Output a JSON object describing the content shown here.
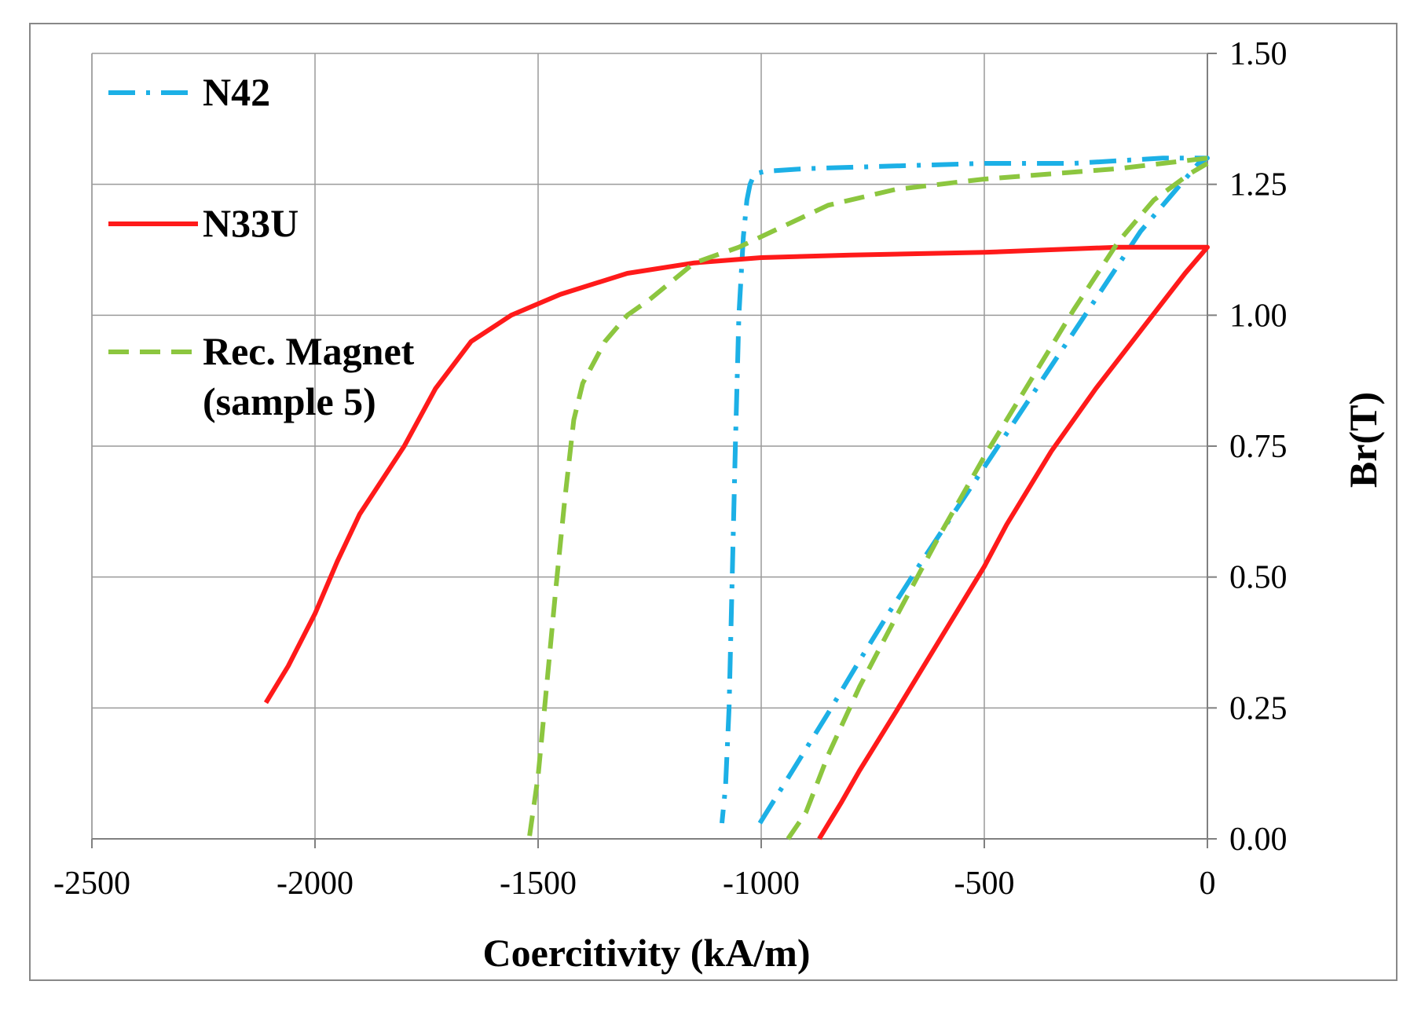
{
  "chart_data": {
    "type": "line",
    "title": "",
    "xlabel": "Coercitivity (kA/m)",
    "ylabel": "Br(T)",
    "xlim": [
      -2500,
      0
    ],
    "ylim": [
      0,
      1.5
    ],
    "x_ticks": [
      -2500,
      -2000,
      -1500,
      -1000,
      -500,
      0
    ],
    "x_tick_labels": [
      "-2500",
      "-2000",
      "-1500",
      "-1000",
      "-500",
      "0"
    ],
    "y_ticks": [
      0,
      0.25,
      0.5,
      0.75,
      1.0,
      1.25,
      1.5
    ],
    "y_tick_labels": [
      "0.00",
      "0.25",
      "0.50",
      "0.75",
      "1.00",
      "1.25",
      "1.50"
    ],
    "y_axis_side": "right",
    "grid": true,
    "legend_position": "top-left",
    "series": [
      {
        "name": "N42",
        "legend_label": [
          "N42"
        ],
        "color": "#1cb0e6",
        "style": "dash-dot",
        "points": [
          [
            -1003,
            0.03
          ],
          [
            -930,
            0.13
          ],
          [
            -850,
            0.24
          ],
          [
            -780,
            0.34
          ],
          [
            -715,
            0.43
          ],
          [
            -640,
            0.53
          ],
          [
            -570,
            0.62
          ],
          [
            -500,
            0.71
          ],
          [
            -430,
            0.8
          ],
          [
            -360,
            0.89
          ],
          [
            -290,
            0.98
          ],
          [
            -220,
            1.07
          ],
          [
            -150,
            1.16
          ],
          [
            -80,
            1.23
          ],
          [
            -20,
            1.29
          ],
          [
            0,
            1.3
          ],
          [
            -100,
            1.3
          ],
          [
            -300,
            1.29
          ],
          [
            -500,
            1.29
          ],
          [
            -700,
            1.285
          ],
          [
            -900,
            1.28
          ],
          [
            -990,
            1.275
          ],
          [
            -1015,
            1.27
          ],
          [
            -1025,
            1.25
          ],
          [
            -1032,
            1.22
          ],
          [
            -1040,
            1.15
          ],
          [
            -1050,
            1.0
          ],
          [
            -1058,
            0.75
          ],
          [
            -1065,
            0.5
          ],
          [
            -1072,
            0.25
          ],
          [
            -1080,
            0.1
          ],
          [
            -1088,
            0.03
          ]
        ]
      },
      {
        "name": "N33U",
        "legend_label": [
          "N33U"
        ],
        "color": "#ff1a1a",
        "style": "solid",
        "points": [
          [
            -2110,
            0.26
          ],
          [
            -2060,
            0.33
          ],
          [
            -2000,
            0.43
          ],
          [
            -1950,
            0.53
          ],
          [
            -1900,
            0.62
          ],
          [
            -1800,
            0.75
          ],
          [
            -1730,
            0.86
          ],
          [
            -1650,
            0.95
          ],
          [
            -1560,
            1.0
          ],
          [
            -1450,
            1.04
          ],
          [
            -1300,
            1.08
          ],
          [
            -1150,
            1.1
          ],
          [
            -1000,
            1.11
          ],
          [
            -800,
            1.115
          ],
          [
            -500,
            1.12
          ],
          [
            -200,
            1.13
          ],
          [
            0,
            1.13
          ],
          [
            -50,
            1.08
          ],
          [
            -150,
            0.97
          ],
          [
            -250,
            0.86
          ],
          [
            -350,
            0.74
          ],
          [
            -450,
            0.6
          ],
          [
            -500,
            0.52
          ],
          [
            -600,
            0.38
          ],
          [
            -700,
            0.24
          ],
          [
            -780,
            0.13
          ],
          [
            -820,
            0.07
          ],
          [
            -870,
            0.0
          ]
        ]
      },
      {
        "name": "Rec. Magnet (sample 5)",
        "legend_label": [
          "Rec. Magnet",
          "(sample 5)"
        ],
        "color": "#8cc63f",
        "style": "dashed",
        "points": [
          [
            0,
            1.3
          ],
          [
            -200,
            1.28
          ],
          [
            -500,
            1.26
          ],
          [
            -700,
            1.24
          ],
          [
            -850,
            1.21
          ],
          [
            -950,
            1.17
          ],
          [
            -1050,
            1.13
          ],
          [
            -1150,
            1.1
          ],
          [
            -1250,
            1.03
          ],
          [
            -1300,
            1.0
          ],
          [
            -1350,
            0.95
          ],
          [
            -1400,
            0.87
          ],
          [
            -1420,
            0.8
          ],
          [
            -1440,
            0.65
          ],
          [
            -1460,
            0.48
          ],
          [
            -1480,
            0.3
          ],
          [
            -1500,
            0.12
          ],
          [
            -1520,
            0.0
          ],
          [
            -1530,
            0.0
          ],
          [
            -940,
            0.0
          ],
          [
            -900,
            0.05
          ],
          [
            -850,
            0.16
          ],
          [
            -780,
            0.29
          ],
          [
            -700,
            0.42
          ],
          [
            -600,
            0.58
          ],
          [
            -500,
            0.73
          ],
          [
            -400,
            0.87
          ],
          [
            -300,
            1.01
          ],
          [
            -200,
            1.14
          ],
          [
            -120,
            1.22
          ],
          [
            -40,
            1.27
          ],
          [
            0,
            1.29
          ]
        ],
        "segments": [
          [
            [
              0,
              1.3
            ],
            [
              -200,
              1.28
            ],
            [
              -500,
              1.26
            ],
            [
              -700,
              1.24
            ],
            [
              -850,
              1.21
            ],
            [
              -950,
              1.17
            ],
            [
              -1050,
              1.13
            ],
            [
              -1150,
              1.1
            ],
            [
              -1250,
              1.03
            ],
            [
              -1300,
              1.0
            ],
            [
              -1350,
              0.95
            ],
            [
              -1400,
              0.87
            ],
            [
              -1420,
              0.8
            ],
            [
              -1440,
              0.65
            ],
            [
              -1460,
              0.48
            ],
            [
              -1480,
              0.3
            ],
            [
              -1500,
              0.12
            ],
            [
              -1520,
              0.0
            ]
          ],
          [
            [
              -940,
              0.0
            ],
            [
              -900,
              0.05
            ],
            [
              -850,
              0.16
            ],
            [
              -780,
              0.29
            ],
            [
              -700,
              0.42
            ],
            [
              -600,
              0.58
            ],
            [
              -500,
              0.73
            ],
            [
              -400,
              0.87
            ],
            [
              -300,
              1.01
            ],
            [
              -200,
              1.14
            ],
            [
              -120,
              1.22
            ],
            [
              -40,
              1.27
            ],
            [
              0,
              1.29
            ]
          ]
        ]
      }
    ]
  }
}
